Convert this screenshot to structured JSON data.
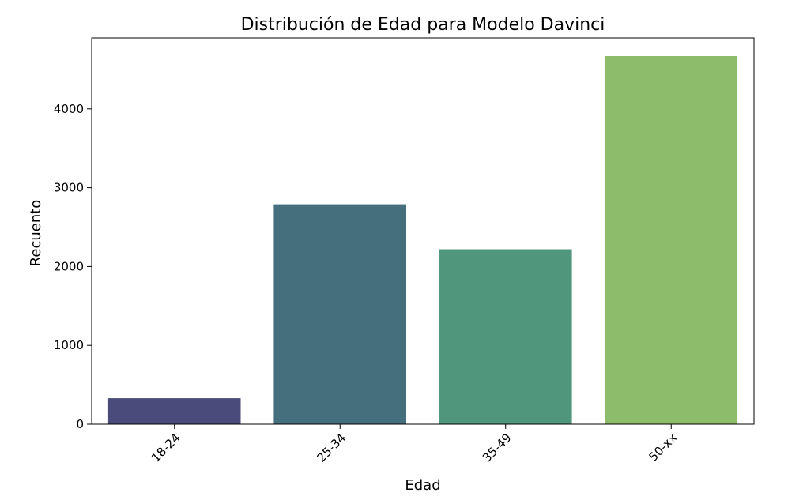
{
  "chart_data": {
    "type": "bar",
    "title": "Distribución de Edad para Modelo Davinci",
    "xlabel": "Edad",
    "ylabel": "Recuento",
    "categories": [
      "18-24",
      "25-34",
      "35-49",
      "50-xx"
    ],
    "values": [
      330,
      2790,
      2220,
      4670
    ],
    "colors": [
      "#4a4a7b",
      "#466f7e",
      "#50967d",
      "#8dbd6b"
    ],
    "ylim": [
      0,
      4900
    ],
    "yticks": [
      0,
      1000,
      2000,
      3000,
      4000
    ],
    "xtick_rotation": 45,
    "grid": false,
    "legend": "none"
  }
}
